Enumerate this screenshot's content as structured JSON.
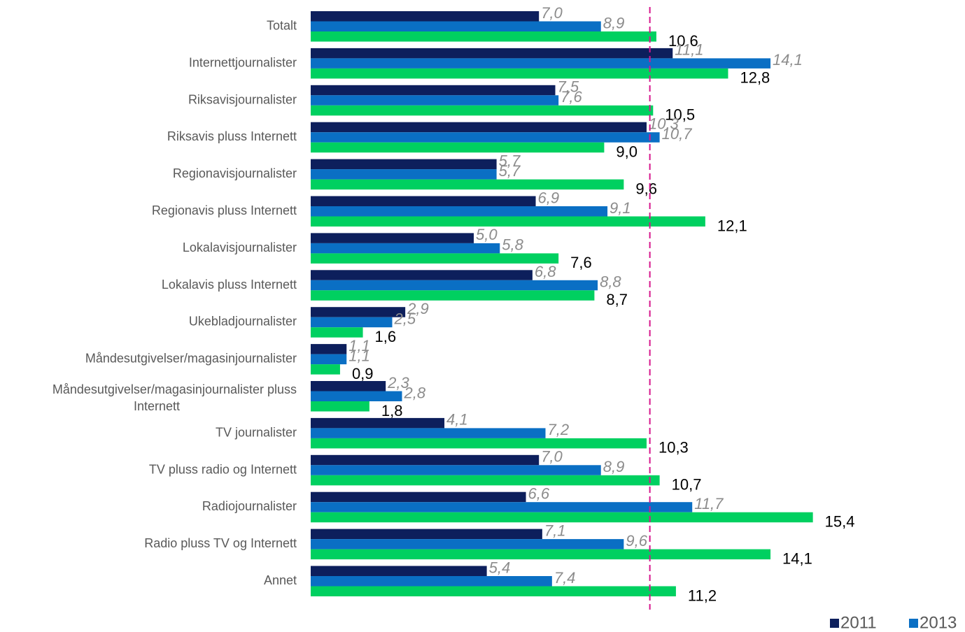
{
  "chart_data": {
    "type": "bar",
    "orientation": "horizontal",
    "categories": [
      "Totalt",
      "Internettjournalister",
      "Riksavisjournalister",
      "Riksavis pluss Internett",
      "Regionavisjournalister",
      "Regionavis pluss Internett",
      "Lokalavisjournalister",
      "Lokalavis pluss Internett",
      "Ukebladjournalister",
      "Måndesutgivelser/magasinjournalister",
      [
        "Måndesutgivelser/magasinjournalister pluss",
        "Internett"
      ],
      "TV journalister",
      "TV pluss radio og Internett",
      "Radiojournalister",
      "Radio pluss TV og Internett",
      "Annet"
    ],
    "series": [
      {
        "name": "2011",
        "color": "#0d1f5c",
        "values": [
          7.0,
          11.1,
          7.5,
          10.3,
          5.7,
          6.9,
          5.0,
          6.8,
          2.9,
          1.1,
          2.3,
          4.1,
          7.0,
          6.6,
          7.1,
          5.4
        ],
        "labels": [
          "7,0",
          "11,1",
          "7,5",
          "10,3",
          "5,7",
          "6,9",
          "5,0",
          "6,8",
          "2,9",
          "1,1",
          "2,3",
          "4,1",
          "7,0",
          "6,6",
          "7,1",
          "5,4"
        ]
      },
      {
        "name": "2013",
        "color": "#0a6fc4",
        "values": [
          8.9,
          14.1,
          7.6,
          10.7,
          5.7,
          9.1,
          5.8,
          8.8,
          2.5,
          1.1,
          2.8,
          7.2,
          8.9,
          11.7,
          9.6,
          7.4
        ],
        "labels": [
          "8,9",
          "14,1",
          "7,6",
          "10,7",
          "5,7",
          "9,1",
          "5,8",
          "8,8",
          "2,5",
          "1,1",
          "2,8",
          "7,2",
          "8,9",
          "11,7",
          "9,6",
          "7,4"
        ]
      },
      {
        "color": "#00d060",
        "values": [
          10.6,
          12.8,
          10.5,
          9.0,
          9.6,
          12.1,
          7.6,
          8.7,
          1.6,
          0.9,
          1.8,
          10.3,
          10.7,
          15.4,
          14.1,
          11.2
        ],
        "labels": [
          "10,6",
          "12,8",
          "10,5",
          "9,0",
          "9,6",
          "12,1",
          "7,6",
          "8,7",
          "1,6",
          "0,9",
          "1,8",
          "10,3",
          "10,7",
          "15,4",
          "14,1",
          "11,2"
        ]
      }
    ],
    "reference_line": {
      "value": 10.4,
      "color": "#d6168c"
    },
    "legend_position": "bottom-right",
    "grid": false
  }
}
